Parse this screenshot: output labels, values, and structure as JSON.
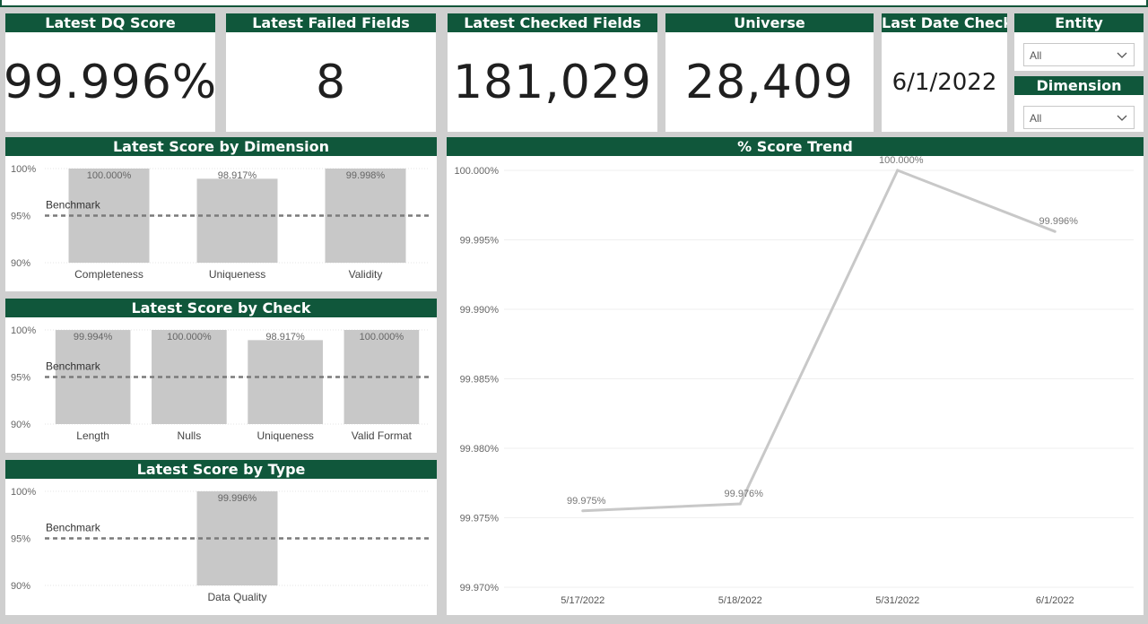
{
  "kpis": {
    "dq_score": {
      "title": "Latest DQ Score",
      "value": "99.996%"
    },
    "failed_fields": {
      "title": "Latest Failed Fields",
      "value": "8"
    },
    "checked_fields": {
      "title": "Latest Checked Fields",
      "value": "181,029"
    },
    "universe": {
      "title": "Universe",
      "value": "28,409"
    },
    "last_date": {
      "title": "Last Date Check",
      "value": "6/1/2022"
    }
  },
  "slicers": {
    "entity": {
      "title": "Entity",
      "value": "All",
      "icon": "chevron-down-icon"
    },
    "dimension": {
      "title": "Dimension",
      "value": "All",
      "icon": "chevron-down-icon"
    }
  },
  "colors": {
    "header": "#10573b",
    "bar": "#c8c8c8",
    "line": "#c8c8c8",
    "benchmark": "#7a7a7a"
  },
  "chart_data": [
    {
      "id": "by_dimension",
      "type": "bar",
      "title": "Latest Score by Dimension",
      "categories": [
        "Completeness",
        "Uniqueness",
        "Validity"
      ],
      "values": [
        100.0,
        98.917,
        99.998
      ],
      "data_labels": [
        "100.000%",
        "98.917%",
        "99.998%"
      ],
      "ylim": [
        90,
        100
      ],
      "yticks": [
        "90%",
        "95%",
        "100%"
      ],
      "benchmark": {
        "label": "Benchmark",
        "value": 95
      }
    },
    {
      "id": "by_check",
      "type": "bar",
      "title": "Latest Score by Check",
      "categories": [
        "Length",
        "Nulls",
        "Uniqueness",
        "Valid Format"
      ],
      "values": [
        99.994,
        100.0,
        98.917,
        100.0
      ],
      "data_labels": [
        "99.994%",
        "100.000%",
        "98.917%",
        "100.000%"
      ],
      "ylim": [
        90,
        100
      ],
      "yticks": [
        "90%",
        "95%",
        "100%"
      ],
      "benchmark": {
        "label": "Benchmark",
        "value": 95
      }
    },
    {
      "id": "by_type",
      "type": "bar",
      "title": "Latest Score by Type",
      "categories": [
        "Data Quality"
      ],
      "values": [
        99.996
      ],
      "data_labels": [
        "99.996%"
      ],
      "ylim": [
        90,
        100
      ],
      "yticks": [
        "90%",
        "95%",
        "100%"
      ],
      "benchmark": {
        "label": "Benchmark",
        "value": 95
      }
    },
    {
      "id": "trend",
      "type": "line",
      "title": "% Score Trend",
      "x": [
        "5/17/2022",
        "5/18/2022",
        "5/31/2022",
        "6/1/2022"
      ],
      "values": [
        99.9755,
        99.976,
        100.0,
        99.9956
      ],
      "data_labels": [
        "99.975%",
        "99.976%",
        "100.000%",
        "99.996%"
      ],
      "ylim": [
        99.97,
        100.0
      ],
      "yticks": [
        "99.970%",
        "99.975%",
        "99.980%",
        "99.985%",
        "99.990%",
        "99.995%",
        "100.000%"
      ],
      "grid": true
    }
  ]
}
